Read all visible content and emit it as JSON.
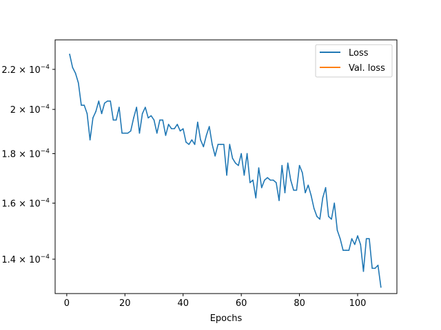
{
  "chart_data": {
    "type": "line",
    "title": "",
    "xlabel": "Epochs",
    "ylabel": "",
    "xscale": "linear",
    "yscale": "log",
    "xlim": [
      -4,
      113.5
    ],
    "ylim": [
      0.000129,
      0.000236
    ],
    "xticks": [
      0,
      20,
      40,
      60,
      80,
      100
    ],
    "xtick_labels": [
      "0",
      "20",
      "40",
      "60",
      "80",
      "100"
    ],
    "yticks": [
      0.00014,
      0.00016,
      0.00018,
      0.0002,
      0.00022
    ],
    "ytick_labels": [
      {
        "mantissa": "1.4",
        "base": "10",
        "exp": "−4"
      },
      {
        "mantissa": "1.6",
        "base": "10",
        "exp": "−4"
      },
      {
        "mantissa": "1.8",
        "base": "10",
        "exp": "−4"
      },
      {
        "mantissa": "2",
        "base": "10",
        "exp": "−4"
      },
      {
        "mantissa": "2.2",
        "base": "10",
        "exp": "−4"
      }
    ],
    "grid": false,
    "legend_position": "top-right",
    "series": [
      {
        "name": "Loss",
        "color": "#1f77b4",
        "x": [
          1,
          2,
          3,
          4,
          5,
          6,
          7,
          8,
          9,
          10,
          11,
          12,
          13,
          14,
          15,
          16,
          17,
          18,
          19,
          20,
          21,
          22,
          23,
          24,
          25,
          26,
          27,
          28,
          29,
          30,
          31,
          32,
          33,
          34,
          35,
          36,
          37,
          38,
          39,
          40,
          41,
          42,
          43,
          44,
          45,
          46,
          47,
          48,
          49,
          50,
          51,
          52,
          53,
          54,
          55,
          56,
          57,
          58,
          59,
          60,
          61,
          62,
          63,
          64,
          65,
          66,
          67,
          68,
          69,
          70,
          71,
          72,
          73,
          74,
          75,
          76,
          77,
          78,
          79,
          80,
          81,
          82,
          83,
          84,
          85,
          86,
          87,
          88,
          89,
          90,
          91,
          92,
          93,
          94,
          95,
          96,
          97,
          98,
          99,
          100,
          101,
          102,
          103,
          104,
          105,
          106,
          107,
          108
        ],
        "values": [
          0.000228,
          0.000221,
          0.000218,
          0.000213,
          0.000202,
          0.000202,
          0.000198,
          0.000186,
          0.000196,
          0.000199,
          0.000204,
          0.000198,
          0.000203,
          0.000204,
          0.000204,
          0.000195,
          0.000195,
          0.000201,
          0.000189,
          0.000189,
          0.000189,
          0.00019,
          0.000196,
          0.000201,
          0.000189,
          0.000198,
          0.000201,
          0.000196,
          0.000197,
          0.000195,
          0.000189,
          0.000195,
          0.000195,
          0.000188,
          0.000193,
          0.000191,
          0.000191,
          0.000193,
          0.00019,
          0.000191,
          0.000185,
          0.000184,
          0.000186,
          0.000184,
          0.000194,
          0.000186,
          0.000183,
          0.000188,
          0.000192,
          0.000184,
          0.000179,
          0.000184,
          0.000184,
          0.000184,
          0.000171,
          0.000184,
          0.000178,
          0.000176,
          0.000175,
          0.00018,
          0.000171,
          0.00018,
          0.000168,
          0.000169,
          0.000162,
          0.000174,
          0.000166,
          0.000169,
          0.00017,
          0.000169,
          0.000169,
          0.000168,
          0.000161,
          0.000175,
          0.000164,
          0.000176,
          0.000169,
          0.000165,
          0.000165,
          0.000175,
          0.000172,
          0.000164,
          0.000167,
          0.000163,
          0.000158,
          0.000155,
          0.000154,
          0.000162,
          0.000166,
          0.000155,
          0.000154,
          0.00016,
          0.00015,
          0.000147,
          0.000143,
          0.000143,
          0.000143,
          0.000147,
          0.000145,
          0.000148,
          0.000145,
          0.000136,
          0.000147,
          0.000147,
          0.000137,
          0.000137,
          0.000138,
          0.000131
        ]
      },
      {
        "name": "Val. loss",
        "color": "#ff7f0e",
        "x": [],
        "values": []
      }
    ]
  }
}
